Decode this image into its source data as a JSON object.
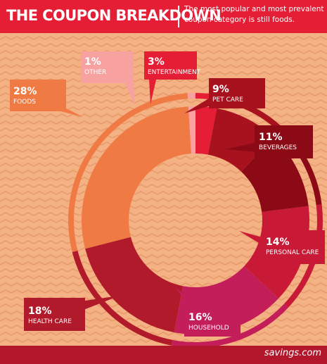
{
  "header": {
    "title": "THE COUPON BREAKDOWN",
    "subtitle": "The most popular and most prevalent coupon category is still foods."
  },
  "footer": {
    "brand": "savings.com"
  },
  "colors": {
    "background": "#f4b183",
    "stripe": "#e89b6b",
    "header": "#e51d35",
    "footer": "#b3172b"
  },
  "chart_data": {
    "type": "pie",
    "title": "THE COUPON BREAKDOWN",
    "unit": "%",
    "slices": [
      {
        "name": "ENTERTAINMENT",
        "value": 3,
        "label": "3%",
        "color": "#e51d35"
      },
      {
        "name": "PET CARE",
        "value": 9,
        "label": "9%",
        "color": "#a8121f"
      },
      {
        "name": "BEVERAGES",
        "value": 11,
        "label": "11%",
        "color": "#8c0a16"
      },
      {
        "name": "PERSONAL CARE",
        "value": 14,
        "label": "14%",
        "color": "#c81a36"
      },
      {
        "name": "HOUSEHOLD",
        "value": 16,
        "label": "16%",
        "color": "#c41e5a"
      },
      {
        "name": "HEALTH CARE",
        "value": 18,
        "label": "18%",
        "color": "#b11a2a"
      },
      {
        "name": "FOODS",
        "value": 28,
        "label": "28%",
        "color": "#f07a43"
      },
      {
        "name": "OTHER",
        "value": 1,
        "label": "1%",
        "color": "#f7a1a1"
      }
    ]
  }
}
